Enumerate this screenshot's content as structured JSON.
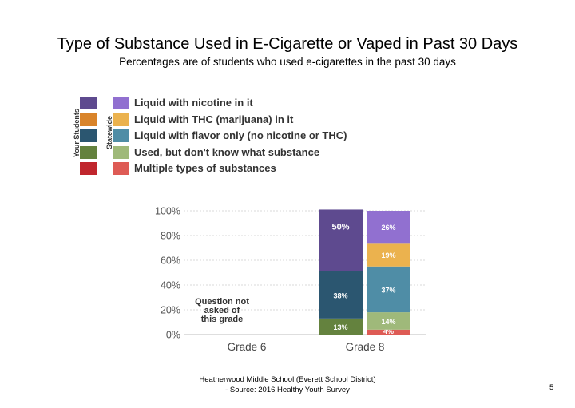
{
  "title": "Type of Substance Used in E-Cigarette or Vaped in Past 30 Days",
  "subtitle": "Percentages are of students who used e-cigarettes in the past 30 days",
  "legend": {
    "column_your_students": "Your Students",
    "column_statewide": "Statewide",
    "items": [
      {
        "label": "Liquid with nicotine in it",
        "your_color": "#5e4a8f",
        "state_color": "#9170d0"
      },
      {
        "label": "Liquid with THC (marijuana) in it",
        "your_color": "#d9842a",
        "state_color": "#ebb24e"
      },
      {
        "label": "Liquid with flavor only (no nicotine or THC)",
        "your_color": "#2b5670",
        "state_color": "#4f8da6"
      },
      {
        "label": "Used, but don't know what substance",
        "your_color": "#64823e",
        "state_color": "#9fb97a"
      },
      {
        "label": "Multiple types of substances",
        "your_color": "#c0262d",
        "state_color": "#de5b55"
      }
    ]
  },
  "chart_data": {
    "type": "bar",
    "stacked": true,
    "categories": [
      "Grade 6",
      "Grade 8"
    ],
    "y_tick_labels": [
      "0%",
      "20%",
      "40%",
      "60%",
      "80%",
      "100%"
    ],
    "ylim": [
      0,
      100
    ],
    "grid": true,
    "notes": [
      {
        "category": "Grade 6",
        "text": [
          "Question not",
          "asked of",
          "this grade"
        ]
      }
    ],
    "bars": [
      {
        "category": "Grade 8",
        "group": "Your Students",
        "segments": [
          {
            "series": "Used, but don't know what substance",
            "value": 13,
            "label": "13%",
            "color": "#64823e"
          },
          {
            "series": "Liquid with flavor only (no nicotine or THC)",
            "value": 38,
            "label": "38%",
            "color": "#2b5670"
          },
          {
            "series": "Liquid with nicotine in it",
            "value": 50,
            "label": "50%",
            "color": "#5e4a8f"
          }
        ]
      },
      {
        "category": "Grade 8",
        "group": "Statewide",
        "segments": [
          {
            "series": "Multiple types of substances",
            "value": 4,
            "label": "4%",
            "color": "#de5b55"
          },
          {
            "series": "Used, but don't know what substance",
            "value": 14,
            "label": "14%",
            "color": "#9fb97a"
          },
          {
            "series": "Liquid with flavor only (no nicotine or THC)",
            "value": 37,
            "label": "37%",
            "color": "#4f8da6"
          },
          {
            "series": "Liquid with THC (marijuana) in it",
            "value": 19,
            "label": "19%",
            "color": "#ebb24e"
          },
          {
            "series": "Liquid with nicotine in it",
            "value": 26,
            "label": "26%",
            "color": "#9170d0"
          }
        ]
      }
    ]
  },
  "footer": {
    "line1": "Heatherwood Middle School (Everett School District)",
    "line2": "- Source: 2016 Healthy Youth Survey"
  },
  "page_number": "5"
}
